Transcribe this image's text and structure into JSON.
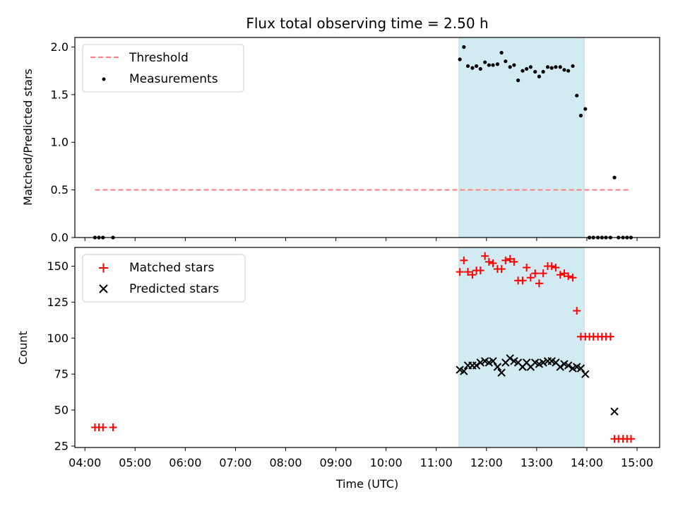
{
  "chart_data": {
    "type": "scatter",
    "title": "Flux total observing time = 2.50 h",
    "xlabel": "Time (UTC)",
    "x_unit": "hours UTC",
    "xlim": [
      3.8,
      15.45
    ],
    "x_ticks": [
      4,
      5,
      6,
      7,
      8,
      9,
      10,
      11,
      12,
      13,
      14,
      15
    ],
    "x_tick_labels": [
      "04:00",
      "05:00",
      "06:00",
      "07:00",
      "08:00",
      "09:00",
      "10:00",
      "11:00",
      "12:00",
      "13:00",
      "14:00",
      "15:00"
    ],
    "shaded_span": [
      11.45,
      13.95
    ],
    "colors": {
      "threshold": "#ff7f7f",
      "measurements": "#000000",
      "matched": "#ff0000",
      "predicted": "#000000",
      "span": "#add8e6"
    },
    "top_panel": {
      "ylabel": "Matched/Predicted stars",
      "ylim": [
        0,
        2.1
      ],
      "y_ticks": [
        0.0,
        0.5,
        1.0,
        1.5,
        2.0
      ],
      "y_tick_labels": [
        "0.0",
        "0.5",
        "1.0",
        "1.5",
        "2.0"
      ],
      "legend": [
        "Threshold",
        "Measurements"
      ],
      "threshold": {
        "name": "Threshold",
        "x": [
          4.2,
          14.85
        ],
        "y": [
          0.5,
          0.5
        ]
      },
      "measurements": {
        "name": "Measurements",
        "x": [
          4.2,
          4.28,
          4.36,
          4.56,
          11.47,
          11.55,
          11.63,
          11.72,
          11.8,
          11.88,
          11.97,
          12.05,
          12.13,
          12.22,
          12.3,
          12.38,
          12.47,
          12.55,
          12.63,
          12.72,
          12.8,
          12.88,
          12.97,
          13.05,
          13.13,
          13.22,
          13.3,
          13.38,
          13.47,
          13.55,
          13.63,
          13.72,
          13.8,
          13.88,
          13.97,
          14.05,
          14.13,
          14.22,
          14.3,
          14.38,
          14.47,
          14.55,
          14.63,
          14.72,
          14.8,
          14.88
        ],
        "y": [
          0,
          0,
          0,
          0,
          1.87,
          2.0,
          1.8,
          1.78,
          1.8,
          1.77,
          1.84,
          1.81,
          1.81,
          1.82,
          1.94,
          1.85,
          1.79,
          1.81,
          1.65,
          1.75,
          1.77,
          1.79,
          1.74,
          1.69,
          1.74,
          1.79,
          1.78,
          1.79,
          1.79,
          1.76,
          1.75,
          1.8,
          1.49,
          1.28,
          1.35,
          0,
          0,
          0,
          0,
          0,
          0,
          0.63,
          0,
          0,
          0,
          0
        ]
      }
    },
    "bottom_panel": {
      "ylabel": "Count",
      "ylim": [
        24,
        163
      ],
      "y_ticks": [
        25,
        50,
        75,
        100,
        125,
        150
      ],
      "y_tick_labels": [
        "25",
        "50",
        "75",
        "100",
        "125",
        "150"
      ],
      "legend": [
        "Matched stars",
        "Predicted stars"
      ],
      "matched": {
        "name": "Matched stars",
        "x": [
          4.2,
          4.28,
          4.36,
          4.56,
          11.47,
          11.55,
          11.63,
          11.72,
          11.8,
          11.88,
          11.97,
          12.05,
          12.13,
          12.22,
          12.3,
          12.38,
          12.47,
          12.55,
          12.63,
          12.72,
          12.8,
          12.88,
          12.97,
          13.05,
          13.13,
          13.22,
          13.3,
          13.38,
          13.47,
          13.55,
          13.63,
          13.72,
          13.8,
          13.88,
          13.97,
          14.05,
          14.13,
          14.22,
          14.3,
          14.38,
          14.47,
          14.55,
          14.63,
          14.72,
          14.8,
          14.88
        ],
        "y": [
          38,
          38,
          38,
          38,
          146,
          154,
          146,
          144,
          147,
          147,
          157,
          153,
          152,
          148,
          148,
          154,
          155,
          153,
          140,
          140,
          149,
          142,
          145,
          138,
          145,
          150,
          150,
          149,
          144,
          145,
          143,
          142,
          119,
          101,
          101,
          101,
          101,
          101,
          101,
          101,
          101,
          30,
          30,
          30,
          30,
          30
        ]
      },
      "predicted": {
        "name": "Predicted stars",
        "x": [
          11.47,
          11.55,
          11.63,
          11.72,
          11.8,
          11.88,
          11.97,
          12.05,
          12.13,
          12.22,
          12.3,
          12.38,
          12.47,
          12.55,
          12.63,
          12.72,
          12.8,
          12.88,
          12.97,
          13.05,
          13.13,
          13.22,
          13.3,
          13.38,
          13.47,
          13.55,
          13.63,
          13.72,
          13.8,
          13.88,
          13.97,
          14.55
        ],
        "y": [
          78,
          77,
          81,
          81,
          81,
          83,
          84,
          83,
          84,
          80,
          76,
          83,
          86,
          84,
          83,
          80,
          83,
          80,
          83,
          82,
          83,
          84,
          84,
          83,
          80,
          82,
          81,
          79,
          80,
          79,
          75,
          49
        ]
      }
    }
  }
}
